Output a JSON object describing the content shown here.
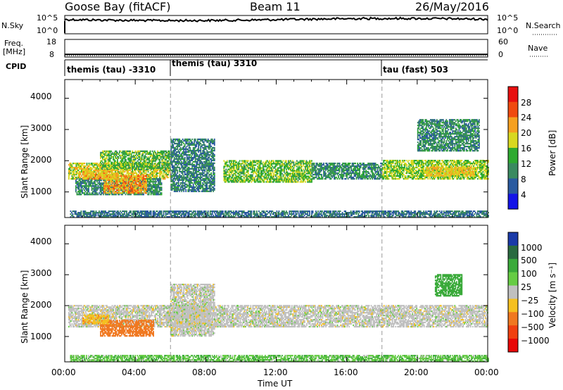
{
  "header": {
    "station": "Goose Bay (fitACF)",
    "beam": "Beam 11",
    "date": "26/May/2016"
  },
  "nsky_panel": {
    "left_label": "N.Sky",
    "left_ticks": [
      "10^5",
      "10^0"
    ],
    "right_label": "N.Search",
    "right_ticks": [
      "10^5",
      "10^0"
    ]
  },
  "freq_panel": {
    "left_label_1": "Freq.",
    "left_label_2": "[MHz]",
    "left_ticks": [
      "18",
      "8"
    ],
    "right_label": "Nave",
    "right_ticks": [
      "60",
      "0"
    ]
  },
  "cpid_panel": {
    "label": "CPID",
    "modes": [
      {
        "name": "themis (tau) -3310",
        "start_hour": 0
      },
      {
        "name": "themis (tau) 3310",
        "start_hour": 6
      },
      {
        "name": "tau (fast) 503",
        "start_hour": 18
      }
    ]
  },
  "power_colorbar": {
    "label": "Power [dB]",
    "ticks": [
      "28",
      "24",
      "20",
      "16",
      "12",
      "8",
      "4"
    ],
    "colors": [
      "#e81010",
      "#f04a10",
      "#f5a020",
      "#d8d820",
      "#2eaa30",
      "#3a8a60",
      "#2a5aa0",
      "#1414e8"
    ]
  },
  "velocity_colorbar": {
    "label": "Velocity [m s⁻¹]",
    "ticks": [
      "1000",
      "500",
      "100",
      "25",
      "−25",
      "−100",
      "−500",
      "−1000"
    ],
    "colors": [
      "#1a3aa8",
      "#2a6a40",
      "#3aaa3a",
      "#66cc44",
      "#c0c0c0",
      "#f5c020",
      "#f07820",
      "#f04010",
      "#e80808"
    ]
  },
  "slant_range_axis": {
    "label": "Slant Range [km]",
    "ticks": [
      "4000",
      "3000",
      "2000",
      "1000"
    ]
  },
  "time_axis": {
    "label": "Time UT",
    "ticks": [
      "00:00",
      "04:00",
      "08:00",
      "12:00",
      "16:00",
      "20:00",
      "00:00"
    ]
  },
  "chart_data": {
    "type": "heatmap",
    "x_label": "Time UT",
    "y_label": "Slant Range [km]",
    "xlim": [
      0,
      24
    ],
    "ylim": [
      180,
      4600
    ],
    "mode_change_hours": [
      6,
      18
    ],
    "power_bands": [
      {
        "t0": 0.2,
        "t1": 6.0,
        "r0": 1400,
        "r1": 1900,
        "p": 18
      },
      {
        "t0": 2.0,
        "t1": 6.0,
        "r0": 1700,
        "r1": 2300,
        "p": 14
      },
      {
        "t0": 0.6,
        "t1": 5.5,
        "r0": 900,
        "r1": 1400,
        "p": 10
      },
      {
        "t0": 2.2,
        "t1": 4.6,
        "r0": 950,
        "r1": 1500,
        "p": 22
      },
      {
        "t0": 1.0,
        "t1": 3.0,
        "r0": 1400,
        "r1": 1700,
        "p": 21
      },
      {
        "t0": 6.0,
        "t1": 8.5,
        "r0": 1000,
        "r1": 2700,
        "p": 9
      },
      {
        "t0": 9.0,
        "t1": 14.0,
        "r0": 1300,
        "r1": 2000,
        "p": 15
      },
      {
        "t0": 14.0,
        "t1": 18.0,
        "r0": 1400,
        "r1": 1900,
        "p": 10
      },
      {
        "t0": 18.0,
        "t1": 24.0,
        "r0": 1400,
        "r1": 2000,
        "p": 16
      },
      {
        "t0": 20.5,
        "t1": 23.2,
        "r0": 1500,
        "r1": 1800,
        "p": 20
      },
      {
        "t0": 0.3,
        "t1": 24.0,
        "r0": 180,
        "r1": 400,
        "p": 8
      },
      {
        "t0": 20.0,
        "t1": 23.5,
        "r0": 2300,
        "r1": 3300,
        "p": 10
      }
    ],
    "velocity_bands": [
      {
        "t0": 0.2,
        "t1": 24.0,
        "r0": 1300,
        "r1": 2000,
        "v": 0
      },
      {
        "t0": 6.0,
        "t1": 8.5,
        "r0": 1000,
        "r1": 2700,
        "v": 0
      },
      {
        "t0": 2.0,
        "t1": 5.0,
        "r0": 1000,
        "r1": 1500,
        "v": -300
      },
      {
        "t0": 1.0,
        "t1": 2.5,
        "r0": 1400,
        "r1": 1700,
        "v": -80
      },
      {
        "t0": 21.0,
        "t1": 22.5,
        "r0": 2300,
        "r1": 3000,
        "v": 150
      },
      {
        "t0": 0.3,
        "t1": 24.0,
        "r0": 180,
        "r1": 400,
        "v": 50
      }
    ],
    "nsky_level": 0.78,
    "freq_level": 0.15,
    "nave_level": 0.08
  }
}
